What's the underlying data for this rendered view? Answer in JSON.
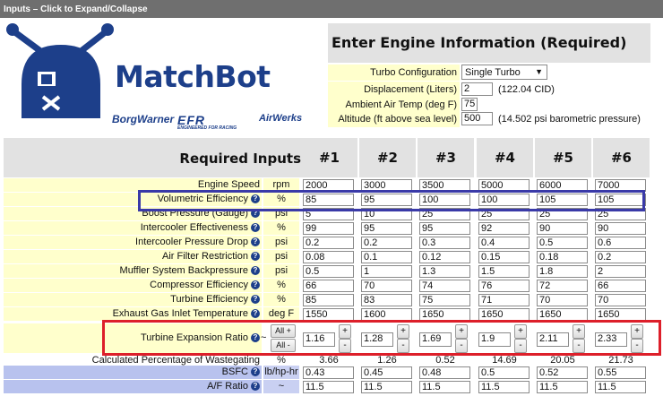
{
  "titlebar": {
    "text": "Inputs – Click to Expand/Collapse"
  },
  "logo": {
    "title": "MatchBot",
    "brands": [
      "BorgWarner",
      "EFR",
      "AirWerks"
    ],
    "efr_tagline": "ENGINEERED FOR RACING",
    "colors": {
      "brand_blue": "#1d3f8a"
    }
  },
  "engine": {
    "header": "Enter Engine Information (Required)",
    "turbo_config": {
      "label": "Turbo Configuration",
      "value": "Single Turbo"
    },
    "displacement": {
      "label": "Displacement (Liters)",
      "value": "2",
      "note": "(122.04 CID)"
    },
    "ambient_temp": {
      "label": "Ambient Air Temp (deg F)",
      "value": "75"
    },
    "altitude": {
      "label": "Altitude (ft above sea level)",
      "value": "500",
      "note": "(14.502 psi barometric pressure)"
    }
  },
  "table": {
    "header_label": "Required Inputs",
    "columns": [
      "#1",
      "#2",
      "#3",
      "#4",
      "#5",
      "#6"
    ],
    "rows": [
      {
        "label": "Engine Speed",
        "unit": "rpm",
        "help": false,
        "values": [
          "2000",
          "3000",
          "3500",
          "5000",
          "6000",
          "7000"
        ]
      },
      {
        "label": "Volumetric Efficiency",
        "unit": "%",
        "help": true,
        "values": [
          "85",
          "95",
          "100",
          "100",
          "105",
          "105"
        ]
      },
      {
        "label": "Boost Pressure (Gauge)",
        "unit": "psi",
        "help": true,
        "values": [
          "5",
          "10",
          "25",
          "25",
          "25",
          "25"
        ]
      },
      {
        "label": "Intercooler Effectiveness",
        "unit": "%",
        "help": true,
        "values": [
          "99",
          "95",
          "95",
          "92",
          "90",
          "90"
        ]
      },
      {
        "label": "Intercooler Pressure Drop",
        "unit": "psi",
        "help": true,
        "values": [
          "0.2",
          "0.2",
          "0.3",
          "0.4",
          "0.5",
          "0.6"
        ]
      },
      {
        "label": "Air Filter Restriction",
        "unit": "psi",
        "help": true,
        "values": [
          "0.08",
          "0.1",
          "0.12",
          "0.15",
          "0.18",
          "0.2"
        ]
      },
      {
        "label": "Muffler System Backpressure",
        "unit": "psi",
        "help": true,
        "values": [
          "0.5",
          "1",
          "1.3",
          "1.5",
          "1.8",
          "2"
        ]
      },
      {
        "label": "Compressor Efficiency",
        "unit": "%",
        "help": true,
        "values": [
          "66",
          "70",
          "74",
          "76",
          "72",
          "66"
        ]
      },
      {
        "label": "Turbine Efficiency",
        "unit": "%",
        "help": true,
        "values": [
          "85",
          "83",
          "75",
          "71",
          "70",
          "70"
        ]
      },
      {
        "label": "Exhaust Gas Inlet Temperature",
        "unit": "deg F",
        "help": true,
        "values": [
          "1550",
          "1600",
          "1650",
          "1650",
          "1650",
          "1650"
        ]
      }
    ],
    "ter": {
      "label": "Turbine Expansion Ratio",
      "unit": "~",
      "all_plus": "All +",
      "all_minus": "All -",
      "plus": "+",
      "minus": "-",
      "values": [
        "1.16",
        "1.28",
        "1.69",
        "1.9",
        "2.11",
        "2.33"
      ]
    },
    "wastegate": {
      "label": "Calculated Percentage of Wastegating",
      "unit": "%",
      "values": [
        "3.66",
        "1.26",
        "0.52",
        "14.69",
        "20.05",
        "21.73"
      ]
    },
    "bsfc": {
      "label": "BSFC",
      "unit": "lb/hp-hr",
      "values": [
        "0.43",
        "0.45",
        "0.48",
        "0.5",
        "0.52",
        "0.55"
      ]
    },
    "af": {
      "label": "A/F Ratio",
      "unit": "~",
      "values": [
        "11.5",
        "11.5",
        "11.5",
        "11.5",
        "11.5",
        "11.5"
      ]
    }
  }
}
